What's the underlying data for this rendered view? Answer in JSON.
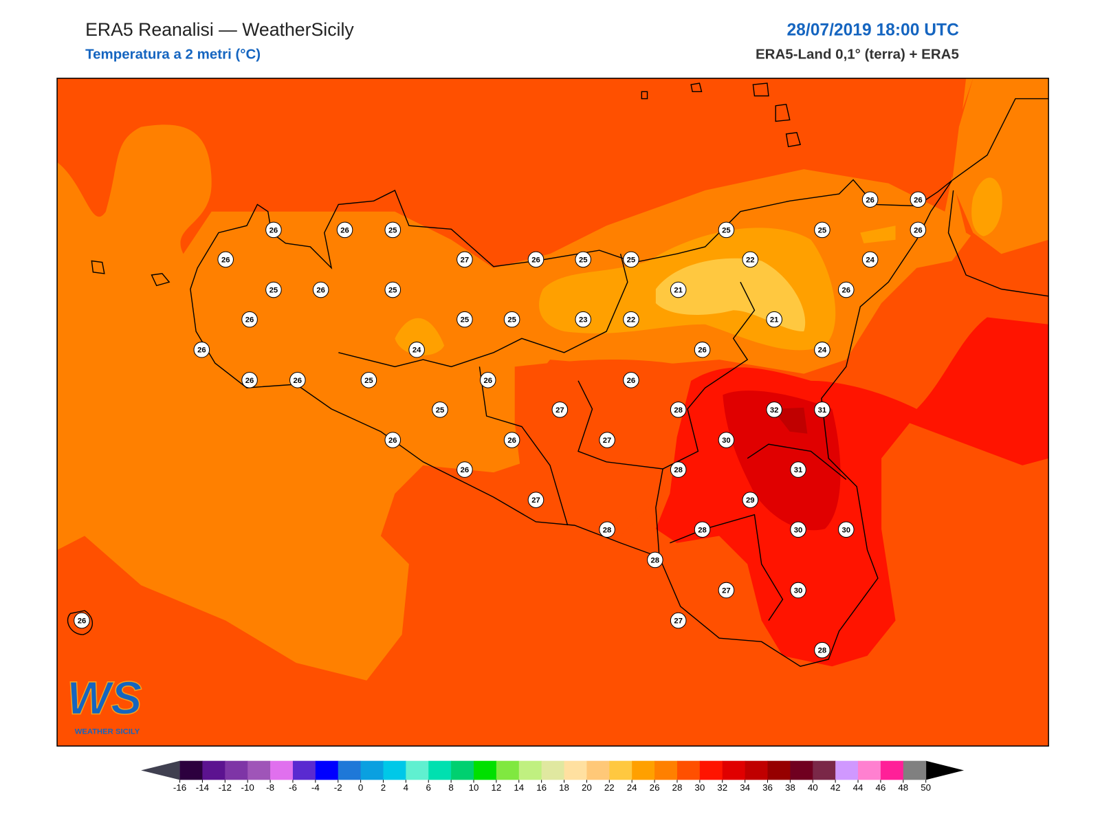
{
  "header": {
    "title": "ERA5 Reanalisi — WeatherSicily",
    "subtitle": "Temperatura a 2 metri (°C)",
    "date": "28/07/2019 18:00 UTC",
    "source": "ERA5-Land 0,1° (terra) + ERA5"
  },
  "stations": [
    26,
    26,
    26,
    26,
    25,
    25,
    25,
    26,
    26,
    27,
    26,
    25,
    25,
    22,
    24,
    25,
    26,
    25,
    21,
    26,
    26,
    25,
    25,
    23,
    22,
    21,
    26,
    24,
    26,
    24,
    26,
    26,
    25,
    26,
    26,
    25,
    27,
    28,
    32,
    31,
    26,
    26,
    27,
    30,
    26,
    28,
    31,
    27,
    29,
    28,
    28,
    30,
    30,
    28,
    27,
    30,
    26,
    27,
    28
  ],
  "colorbar": {
    "ticks": [
      -16,
      -14,
      -12,
      -10,
      -8,
      -6,
      -4,
      -2,
      0,
      2,
      4,
      6,
      8,
      10,
      12,
      14,
      16,
      18,
      20,
      22,
      24,
      26,
      28,
      30,
      32,
      34,
      36,
      38,
      40,
      42,
      44,
      46,
      48,
      50
    ],
    "colors": [
      "#2c003e",
      "#5c1390",
      "#7e35a6",
      "#9f55b8",
      "#e070ee",
      "#5a2ad0",
      "#0000ff",
      "#1e78d8",
      "#0aa0e0",
      "#00c8e8",
      "#60f0d0",
      "#00e0b0",
      "#00d070",
      "#00e000",
      "#80e840",
      "#c0f080",
      "#e0e8a0",
      "#ffe0a0",
      "#ffc878",
      "#ffc840",
      "#ffa000",
      "#ff8000",
      "#ff5000",
      "#ff1400",
      "#e00000",
      "#c00000",
      "#960000",
      "#700020",
      "#7a2848",
      "#d098ff",
      "#ff80d0",
      "#ff2098",
      "#808080"
    ],
    "under": "#404050",
    "over": "#000000"
  },
  "logo": {
    "mark": "WS",
    "text": "WEATHER SICILY"
  }
}
